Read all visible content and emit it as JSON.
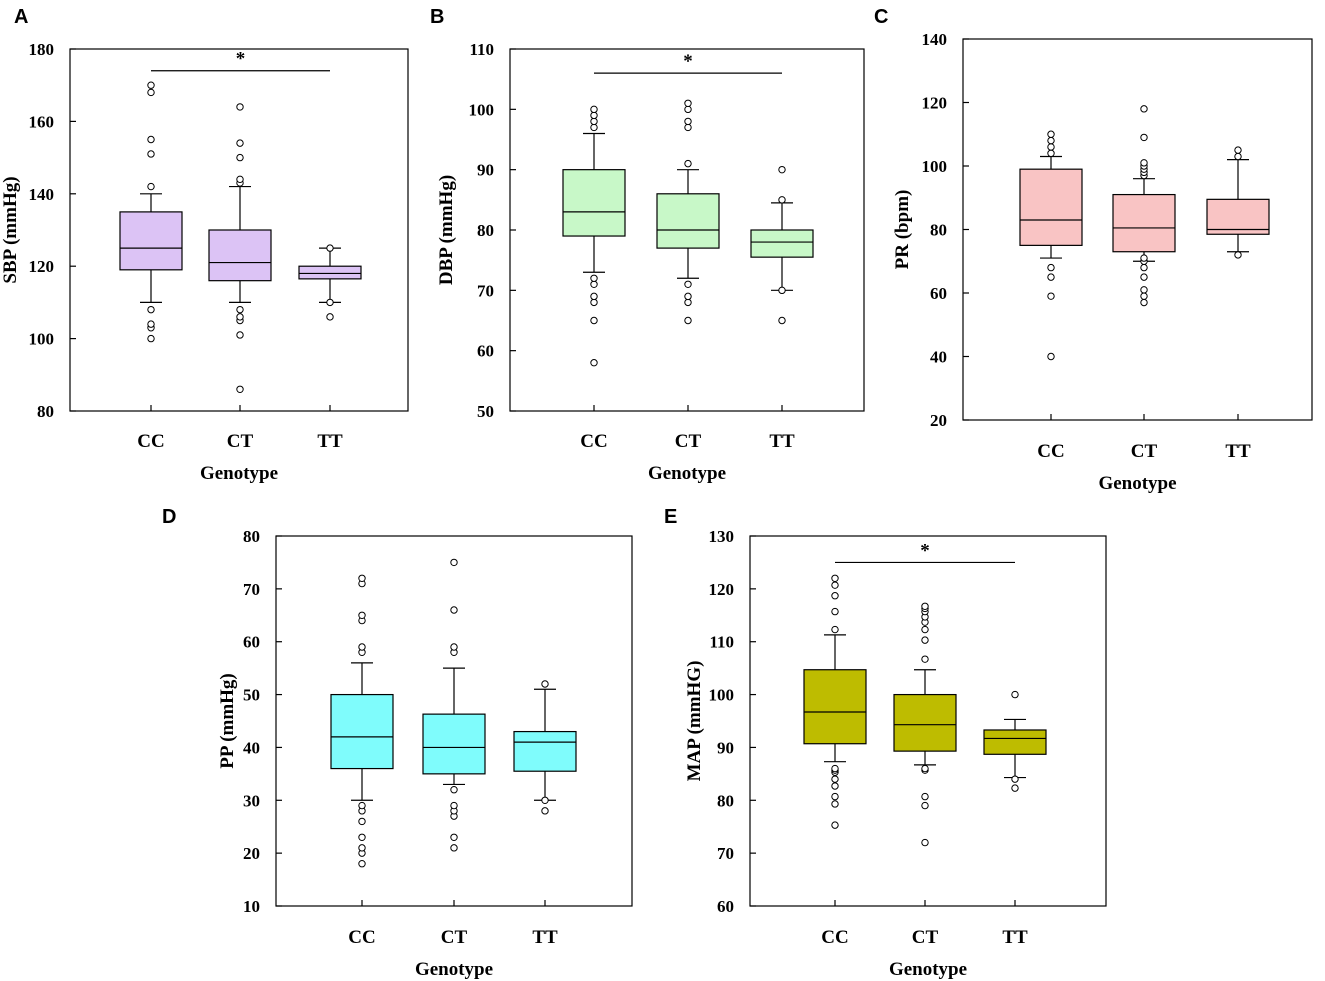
{
  "figure": {
    "colors": {
      "A": "#dcc3f5",
      "B": "#c8f8c8",
      "C": "#f9c4c4",
      "D": "#7ffcfc",
      "E": "#bebc00",
      "ink": "#000000"
    }
  },
  "chart_data": [
    {
      "panel": "A",
      "type": "box",
      "xlabel": "Genotype",
      "ylabel": "SBP (mmHg)",
      "ylim": [
        80,
        180
      ],
      "yticks": [
        "80",
        "100",
        "120",
        "140",
        "160",
        "180"
      ],
      "categories": [
        "CC",
        "CT",
        "TT"
      ],
      "boxes": [
        {
          "q1": 119,
          "median": 125,
          "q3": 135,
          "whisker_low": 110,
          "whisker_high": 140,
          "outliers": [
            100,
            103,
            104,
            108,
            142,
            151,
            155,
            168,
            170
          ]
        },
        {
          "q1": 116,
          "median": 121,
          "q3": 130,
          "whisker_low": 110,
          "whisker_high": 142,
          "outliers": [
            86,
            101,
            105,
            106,
            108,
            143,
            144,
            150,
            154,
            164
          ]
        },
        {
          "q1": 116.5,
          "median": 118,
          "q3": 120,
          "whisker_low": 110,
          "whisker_high": 125,
          "outliers": [
            106,
            110,
            125
          ]
        }
      ],
      "significance": {
        "from": "CC",
        "to": "TT",
        "label": "*",
        "y": 174
      }
    },
    {
      "panel": "B",
      "type": "box",
      "xlabel": "Genotype",
      "ylabel": "DBP (mmHg)",
      "ylim": [
        50,
        110
      ],
      "yticks": [
        "50",
        "60",
        "70",
        "80",
        "90",
        "100",
        "110"
      ],
      "categories": [
        "CC",
        "CT",
        "TT"
      ],
      "boxes": [
        {
          "q1": 79,
          "median": 83,
          "q3": 90,
          "whisker_low": 73,
          "whisker_high": 96,
          "outliers": [
            58,
            65,
            68,
            69,
            71,
            72,
            97,
            98,
            99,
            100
          ]
        },
        {
          "q1": 77,
          "median": 80,
          "q3": 86,
          "whisker_low": 72,
          "whisker_high": 90,
          "outliers": [
            65,
            68,
            69,
            71,
            91,
            97,
            98,
            100,
            101
          ]
        },
        {
          "q1": 75.5,
          "median": 78,
          "q3": 80,
          "whisker_low": 70,
          "whisker_high": 84.5,
          "outliers": [
            65,
            70,
            85,
            90
          ]
        }
      ],
      "significance": {
        "from": "CC",
        "to": "TT",
        "label": "*",
        "y": 106
      }
    },
    {
      "panel": "C",
      "type": "box",
      "xlabel": "Genotype",
      "ylabel": "PR (bpm)",
      "ylim": [
        20,
        140
      ],
      "yticks": [
        "20",
        "40",
        "60",
        "80",
        "100",
        "120",
        "140"
      ],
      "categories": [
        "CC",
        "CT",
        "TT"
      ],
      "boxes": [
        {
          "q1": 75,
          "median": 83,
          "q3": 99,
          "whisker_low": 71,
          "whisker_high": 103,
          "outliers": [
            40,
            59,
            65,
            68,
            104,
            106,
            108,
            110
          ]
        },
        {
          "q1": 73,
          "median": 80.5,
          "q3": 91,
          "whisker_low": 70,
          "whisker_high": 96,
          "outliers": [
            57,
            59,
            61,
            65,
            68,
            70,
            71,
            97,
            98,
            99,
            100,
            101,
            109,
            118
          ]
        },
        {
          "q1": 78.5,
          "median": 80,
          "q3": 89.5,
          "whisker_low": 73,
          "whisker_high": 102,
          "outliers": [
            72,
            103,
            105
          ]
        }
      ],
      "significance": null
    },
    {
      "panel": "D",
      "type": "box",
      "xlabel": "Genotype",
      "ylabel": "PP (mmHg)",
      "ylim": [
        10,
        80
      ],
      "yticks": [
        "10",
        "20",
        "30",
        "40",
        "50",
        "60",
        "70",
        "80"
      ],
      "categories": [
        "CC",
        "CT",
        "TT"
      ],
      "boxes": [
        {
          "q1": 36,
          "median": 42,
          "q3": 50,
          "whisker_low": 30,
          "whisker_high": 56,
          "outliers": [
            18,
            20,
            21,
            23,
            26,
            28,
            29,
            58,
            59,
            64,
            65,
            71,
            72
          ]
        },
        {
          "q1": 35,
          "median": 40,
          "q3": 46.3,
          "whisker_low": 33,
          "whisker_high": 55,
          "outliers": [
            21,
            23,
            27,
            28,
            29,
            32,
            58,
            59,
            66,
            75
          ]
        },
        {
          "q1": 35.5,
          "median": 41,
          "q3": 43,
          "whisker_low": 30,
          "whisker_high": 51,
          "outliers": [
            28,
            30,
            52
          ]
        }
      ],
      "significance": null
    },
    {
      "panel": "E",
      "type": "box",
      "xlabel": "Genotype",
      "ylabel": "MAP (mmHG)",
      "ylim": [
        60,
        130
      ],
      "yticks": [
        "60",
        "70",
        "80",
        "90",
        "100",
        "110",
        "120",
        "130"
      ],
      "categories": [
        "CC",
        "CT",
        "TT"
      ],
      "boxes": [
        {
          "q1": 90.7,
          "median": 96.7,
          "q3": 104.7,
          "whisker_low": 87.3,
          "whisker_high": 111.3,
          "outliers": [
            75.3,
            79.3,
            80.7,
            82.7,
            84,
            85.3,
            85.7,
            86,
            112.3,
            115.7,
            118.7,
            120.7,
            122
          ]
        },
        {
          "q1": 89.3,
          "median": 94.3,
          "q3": 100,
          "whisker_low": 86.7,
          "whisker_high": 104.7,
          "outliers": [
            72,
            79,
            80.7,
            85.7,
            86,
            106.7,
            110.3,
            112.3,
            113.7,
            114.7,
            115.7,
            116.3,
            116.7
          ]
        },
        {
          "q1": 88.7,
          "median": 91.7,
          "q3": 93.3,
          "whisker_low": 84.3,
          "whisker_high": 95.3,
          "outliers": [
            82.3,
            84,
            100
          ]
        }
      ],
      "significance": {
        "from": "CC",
        "to": "TT",
        "label": "*",
        "y": 125
      }
    }
  ]
}
